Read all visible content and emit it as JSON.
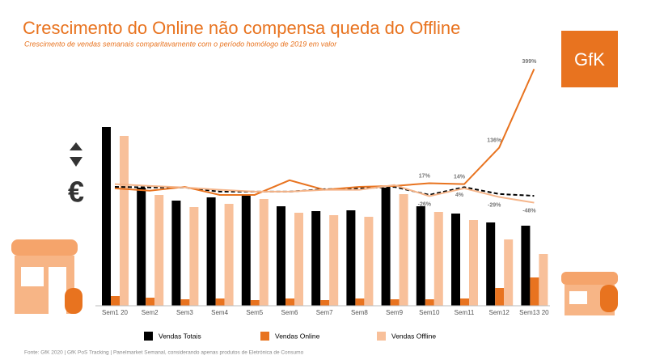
{
  "chart_data": {
    "type": "bar",
    "title": "Crescimento do Online não compensa queda do Offline",
    "subtitle": "Crescimento de vendas semanais comparitavamente com o período homólogo de 2019 em valor",
    "logo": "GfK",
    "source": "Fonte: GfK 2020 | GfK PoS Tracking | Panelmarket Semanal, considerando apenas produtos de Eletrónica de Consumo",
    "categories": [
      "Sem1 20",
      "Sem2",
      "Sem3",
      "Sem4",
      "Sem5",
      "Sem6",
      "Sem7",
      "Sem8",
      "Sem9",
      "Sem10",
      "Sem11",
      "Sem12",
      "Sem13 20"
    ],
    "ylim": [
      0,
      230
    ],
    "y2lim": [
      -60,
      400
    ],
    "series": [
      {
        "name": "Vendas Totais",
        "color": "#000000",
        "values": [
          221,
          146,
          130,
          134,
          138,
          123,
          117,
          118,
          146,
          123,
          114,
          103,
          99
        ]
      },
      {
        "name": "Vendas Online",
        "color": "#e8731f",
        "values": [
          12,
          10,
          8,
          9,
          7,
          9,
          7,
          9,
          8,
          8,
          9,
          22,
          35
        ]
      },
      {
        "name": "Vendas Offline",
        "color": "#f8c09a",
        "values": [
          210,
          137,
          122,
          126,
          132,
          115,
          112,
          110,
          138,
          116,
          106,
          82,
          64
        ]
      },
      {
        "type": "line",
        "axis": "y2",
        "color": "#000000",
        "dash": true,
        "values": [
          5,
          3,
          3,
          -11,
          -11,
          -11,
          -3,
          0,
          5,
          -22,
          4,
          -19,
          -25
        ],
        "value_labels": [
          null,
          null,
          null,
          null,
          null,
          null,
          null,
          null,
          null,
          null,
          "4%",
          null,
          null
        ]
      },
      {
        "type": "line",
        "axis": "y2",
        "color": "#e8731f",
        "values": [
          0,
          -8,
          5,
          -22,
          -22,
          27,
          -5,
          5,
          8,
          17,
          14,
          136,
          399
        ],
        "value_labels": [
          null,
          null,
          null,
          null,
          null,
          null,
          null,
          null,
          null,
          "17%",
          "14%",
          "136%",
          "399%"
        ]
      },
      {
        "type": "line",
        "axis": "y2",
        "color": "#f5b58a",
        "values": [
          14,
          8,
          3,
          -5,
          -11,
          -11,
          -5,
          -5,
          11,
          -26,
          0,
          -29,
          -48
        ],
        "value_labels": [
          null,
          null,
          null,
          null,
          null,
          null,
          null,
          null,
          null,
          "-26%",
          null,
          "-29%",
          "-48%"
        ]
      }
    ]
  }
}
